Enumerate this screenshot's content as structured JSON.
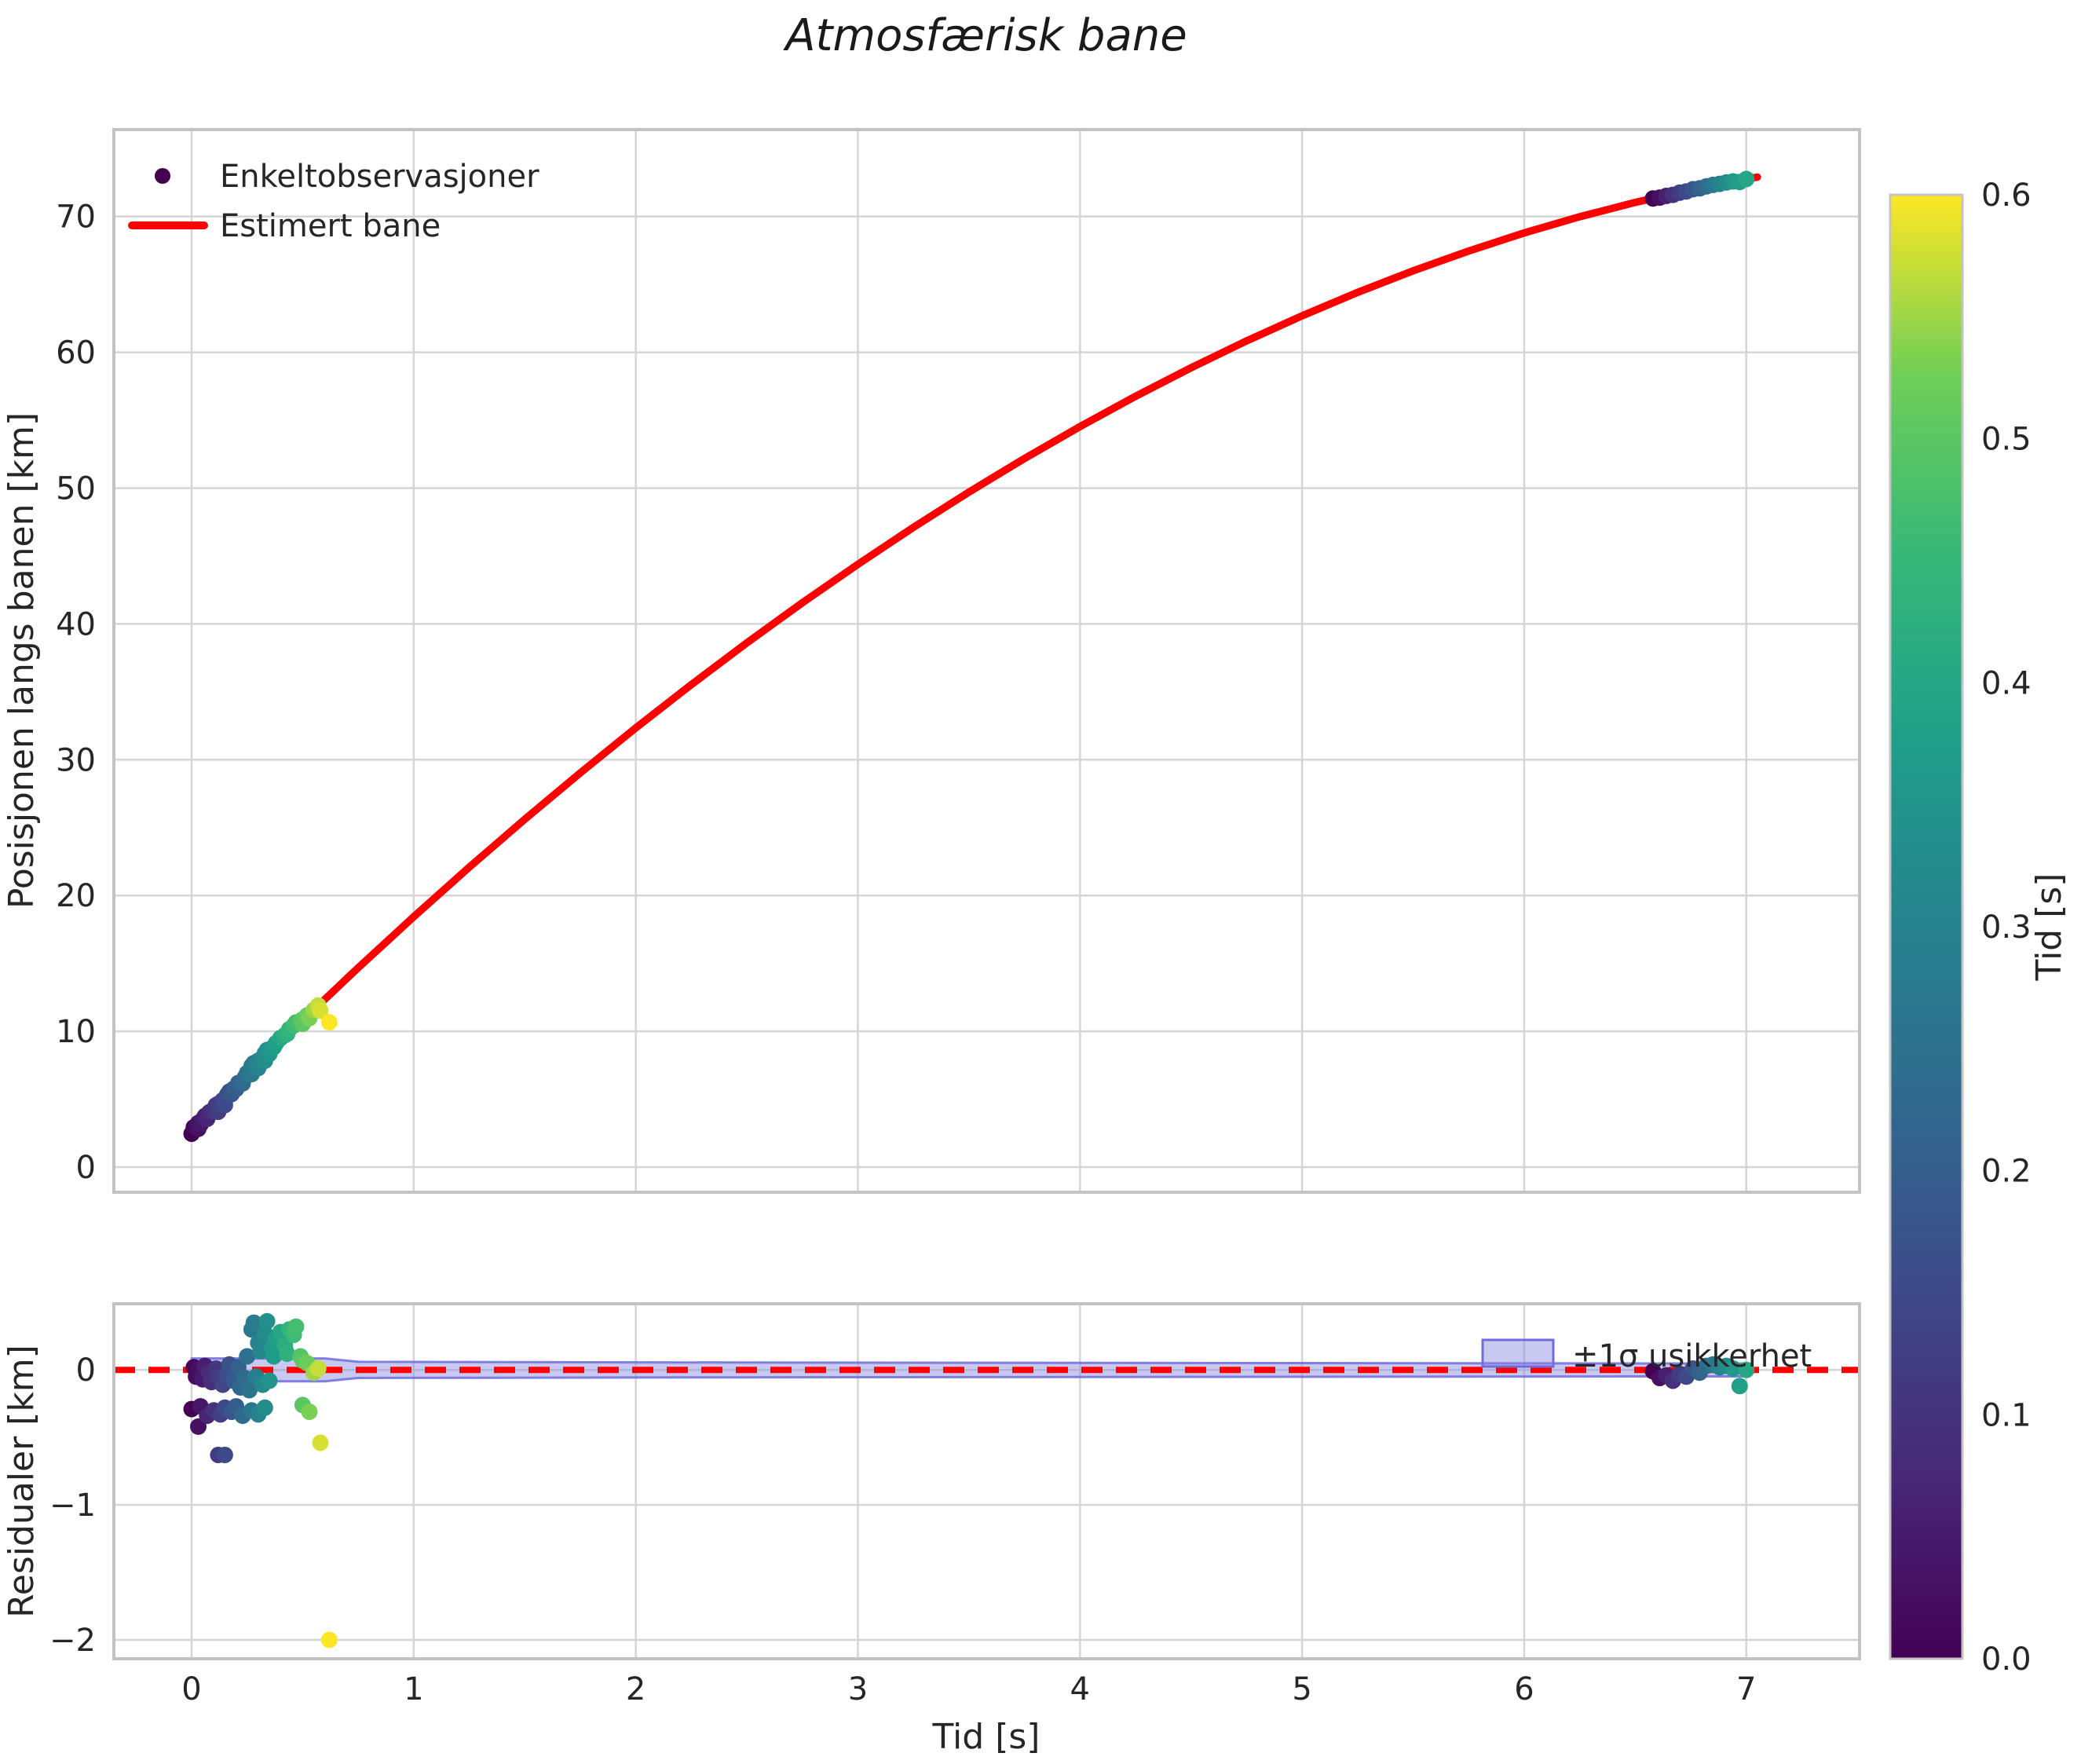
{
  "title": "Atmosfærisk bane",
  "chart_data": [
    {
      "type": "scatter+line",
      "name": "trajectory-panel",
      "ylabel": "Posisjonen langs banen [km]",
      "xticks": [
        0,
        1,
        2,
        3,
        4,
        5,
        6,
        7
      ],
      "yticks": [
        0,
        10,
        20,
        30,
        40,
        50,
        60,
        70
      ],
      "xlim": [
        -0.35,
        7.51
      ],
      "ylim": [
        -1.85,
        76.4
      ],
      "grid": true,
      "legend": {
        "observations_label": "Enkeltobservasjoner",
        "curve_label": "Estimert bane",
        "marker_color": "#440154",
        "line_color": "#ff0000"
      },
      "curve": {
        "color": "#ff0000",
        "t": [
          0,
          0.25,
          0.5,
          0.75,
          1,
          1.25,
          1.5,
          1.75,
          2,
          2.25,
          2.5,
          2.75,
          3,
          3.25,
          3.5,
          3.75,
          4,
          4.25,
          4.5,
          4.75,
          5,
          5.25,
          5.5,
          5.75,
          6,
          6.25,
          6.5,
          6.75,
          7,
          7.05
        ],
        "s": [
          2.75,
          6.83,
          10.81,
          14.68,
          18.43,
          22.08,
          25.61,
          29.03,
          32.34,
          35.53,
          38.6,
          41.56,
          44.39,
          47.11,
          49.71,
          52.18,
          54.53,
          56.76,
          58.86,
          60.84,
          62.69,
          64.41,
          66.0,
          67.46,
          68.79,
          69.98,
          71.04,
          71.97,
          72.76,
          72.9
        ]
      },
      "observations": [
        [
          0.0,
          -0.29,
          0.0
        ],
        [
          0.01,
          0.02,
          0.01
        ],
        [
          0.02,
          -0.05,
          0.02
        ],
        [
          0.03,
          0.01,
          0.03
        ],
        [
          0.03,
          -0.42,
          0.03
        ],
        [
          0.04,
          -0.27,
          0.04
        ],
        [
          0.05,
          -0.07,
          0.05
        ],
        [
          0.06,
          0.03,
          0.06
        ],
        [
          0.07,
          -0.34,
          0.07
        ],
        [
          0.08,
          -0.02,
          0.08
        ],
        [
          0.09,
          -0.09,
          0.09
        ],
        [
          0.1,
          -0.3,
          0.1
        ],
        [
          0.11,
          0.01,
          0.11
        ],
        [
          0.12,
          -0.05,
          0.12
        ],
        [
          0.12,
          -0.63,
          0.12
        ],
        [
          0.13,
          -0.33,
          0.13
        ],
        [
          0.14,
          -0.11,
          0.14
        ],
        [
          0.15,
          -0.28,
          0.15
        ],
        [
          0.15,
          -0.63,
          0.15
        ],
        [
          0.16,
          -0.04,
          0.16
        ],
        [
          0.17,
          0.04,
          0.17
        ],
        [
          0.18,
          -0.31,
          0.18
        ],
        [
          0.19,
          -0.08,
          0.19
        ],
        [
          0.2,
          -0.27,
          0.2
        ],
        [
          0.21,
          0.02,
          0.21
        ],
        [
          0.22,
          -0.13,
          0.22
        ],
        [
          0.23,
          -0.34,
          0.23
        ],
        [
          0.24,
          -0.06,
          0.24
        ],
        [
          0.25,
          0.1,
          0.25
        ],
        [
          0.26,
          -0.15,
          0.26
        ],
        [
          0.27,
          0.3,
          0.27
        ],
        [
          0.27,
          -0.3,
          0.27
        ],
        [
          0.28,
          0.35,
          0.28
        ],
        [
          0.29,
          -0.05,
          0.29
        ],
        [
          0.3,
          0.2,
          0.3
        ],
        [
          0.3,
          -0.33,
          0.3
        ],
        [
          0.31,
          0.14,
          0.31
        ],
        [
          0.32,
          -0.11,
          0.32
        ],
        [
          0.33,
          0.27,
          0.33
        ],
        [
          0.33,
          -0.28,
          0.33
        ],
        [
          0.34,
          0.36,
          0.34
        ],
        [
          0.35,
          -0.08,
          0.35
        ],
        [
          0.36,
          0.16,
          0.36
        ],
        [
          0.37,
          0.1,
          0.37
        ],
        [
          0.38,
          0.23,
          0.38
        ],
        [
          0.4,
          0.28,
          0.4
        ],
        [
          0.42,
          0.18,
          0.42
        ],
        [
          0.43,
          0.12,
          0.43
        ],
        [
          0.44,
          0.3,
          0.44
        ],
        [
          0.46,
          0.26,
          0.46
        ],
        [
          0.47,
          0.32,
          0.47
        ],
        [
          0.49,
          0.1,
          0.49
        ],
        [
          0.5,
          0.07,
          0.5
        ],
        [
          0.5,
          -0.26,
          0.5
        ],
        [
          0.52,
          0.05,
          0.52
        ],
        [
          0.53,
          -0.31,
          0.53
        ],
        [
          0.55,
          -0.02,
          0.55
        ],
        [
          0.57,
          0.01,
          0.57
        ],
        [
          0.58,
          -0.54,
          0.58
        ],
        [
          0.62,
          -2.0,
          0.62
        ],
        [
          6.58,
          -0.01,
          0.0
        ],
        [
          6.61,
          -0.06,
          0.03
        ],
        [
          6.64,
          -0.04,
          0.06
        ],
        [
          6.67,
          -0.08,
          0.09
        ],
        [
          6.7,
          -0.03,
          0.12
        ],
        [
          6.73,
          -0.05,
          0.15
        ],
        [
          6.76,
          0.01,
          0.18
        ],
        [
          6.79,
          -0.02,
          0.21
        ],
        [
          6.82,
          0.03,
          0.24
        ],
        [
          6.85,
          0.04,
          0.27
        ],
        [
          6.88,
          0.02,
          0.3
        ],
        [
          6.91,
          0.03,
          0.33
        ],
        [
          6.94,
          0.01,
          0.36
        ],
        [
          6.97,
          -0.12,
          0.38
        ],
        [
          7.0,
          0.0,
          0.4
        ]
      ]
    },
    {
      "type": "residual-scatter",
      "name": "residual-panel",
      "xlabel": "Tid [s]",
      "ylabel": "Residualer [km]",
      "xticks": [
        0,
        1,
        2,
        3,
        4,
        5,
        6,
        7
      ],
      "yticks": [
        0,
        -1,
        -2
      ],
      "xlim": [
        -0.35,
        7.51
      ],
      "ylim": [
        -2.14,
        0.49
      ],
      "grid": true,
      "zero_line": {
        "y": 0,
        "color": "#ff0000",
        "style": "dashed"
      },
      "band": {
        "label": "±1σ usikkerhet",
        "fill": "#8886e0",
        "edge": "#6f6ddb",
        "t": [
          0,
          0.6,
          0.75,
          2.5,
          6.55,
          7.0
        ],
        "halfwidth": [
          0.085,
          0.085,
          0.06,
          0.055,
          0.048,
          0.048
        ]
      }
    }
  ],
  "colorbar": {
    "label": "Tid [s]",
    "min": 0.0,
    "max": 0.6,
    "ticks": [
      "0.0",
      "0.1",
      "0.2",
      "0.3",
      "0.4",
      "0.5",
      "0.6"
    ],
    "viridis_stops": [
      "#440154",
      "#482878",
      "#3e4989",
      "#31688e",
      "#26828e",
      "#1f9e89",
      "#35b779",
      "#6ece58",
      "#fde725"
    ]
  },
  "style_colors": {
    "grid": "#d5d5d5",
    "spine": "#c3c3c3",
    "text": "#262626"
  }
}
